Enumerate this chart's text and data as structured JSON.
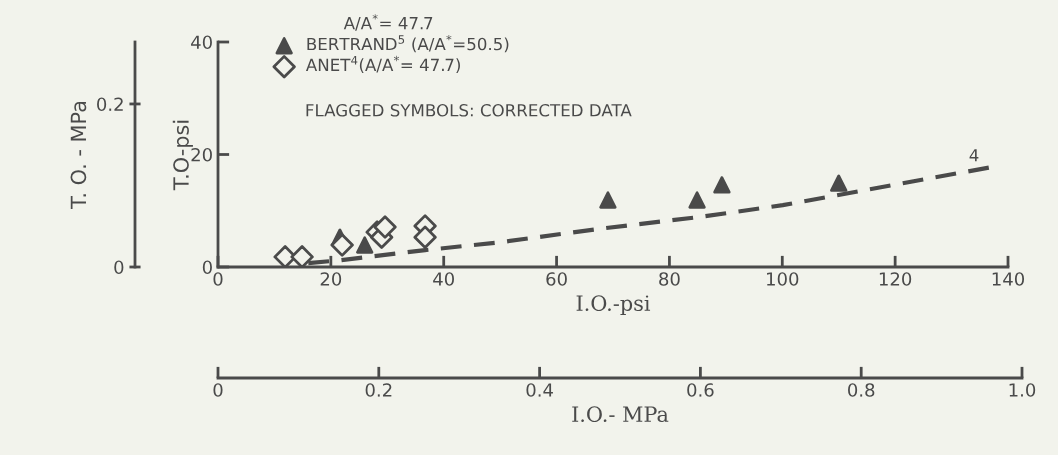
{
  "chart_data": {
    "type": "scatter",
    "xlabel": "I.O.-psi",
    "ylabel": "T.O-psi",
    "y2label": "T. O. - MPa",
    "x2label": "I.O.- MPa",
    "legend_title": "A/A$^{*}$= 47.7",
    "annotations": [
      "FLAGGED SYMBOLS: CORRECTED DATA",
      "4"
    ],
    "xlim": [
      0,
      140
    ],
    "xticks": [
      0,
      20,
      40,
      60,
      80,
      100,
      120,
      140
    ],
    "ylim": [
      0,
      40
    ],
    "yticks": [
      0,
      20,
      40
    ],
    "y2lim": [
      0,
      0.276
    ],
    "y2ticks": [
      0,
      0.2
    ],
    "x2lim": [
      0,
      1.0
    ],
    "x2ticks": [
      0,
      0.2,
      0.4,
      0.6,
      0.8,
      {
        "value": 1.0,
        "label": "1.0"
      }
    ],
    "grid": false,
    "legend": "top left",
    "series": [
      {
        "name": "BERTRAND$^{5}$ (A/A$^{*}$=50.5)",
        "color": "#4a4a4a",
        "marker": "triangle",
        "x": [
          21.6,
          26,
          69.1,
          84.9,
          89.3,
          110
        ],
        "values": [
          5.3,
          3.9,
          11.9,
          11.9,
          14.6,
          14.9
        ]
      },
      {
        "name": "ANET$^{4}$(A/A$^{*}$= 47.7)",
        "color": "#4a4a4a",
        "marker": "diamond",
        "x": [
          11.9,
          14.9,
          22,
          28.2,
          29,
          29.6,
          36.7,
          36.7
        ],
        "values": [
          1.8,
          1.8,
          3.9,
          6.2,
          5.3,
          7.1,
          7.3,
          5.3
        ]
      },
      {
        "type": "line",
        "line_style": "dashed",
        "color": "#4a4a4a",
        "marker": "none",
        "x": [
          16,
          21.6,
          36.7,
          50,
          67.7,
          85.4,
          100.1,
          137.3
        ],
        "values": [
          0.7,
          1.2,
          3.0,
          4.4,
          6.8,
          8.9,
          11.0,
          17.8
        ]
      }
    ]
  }
}
